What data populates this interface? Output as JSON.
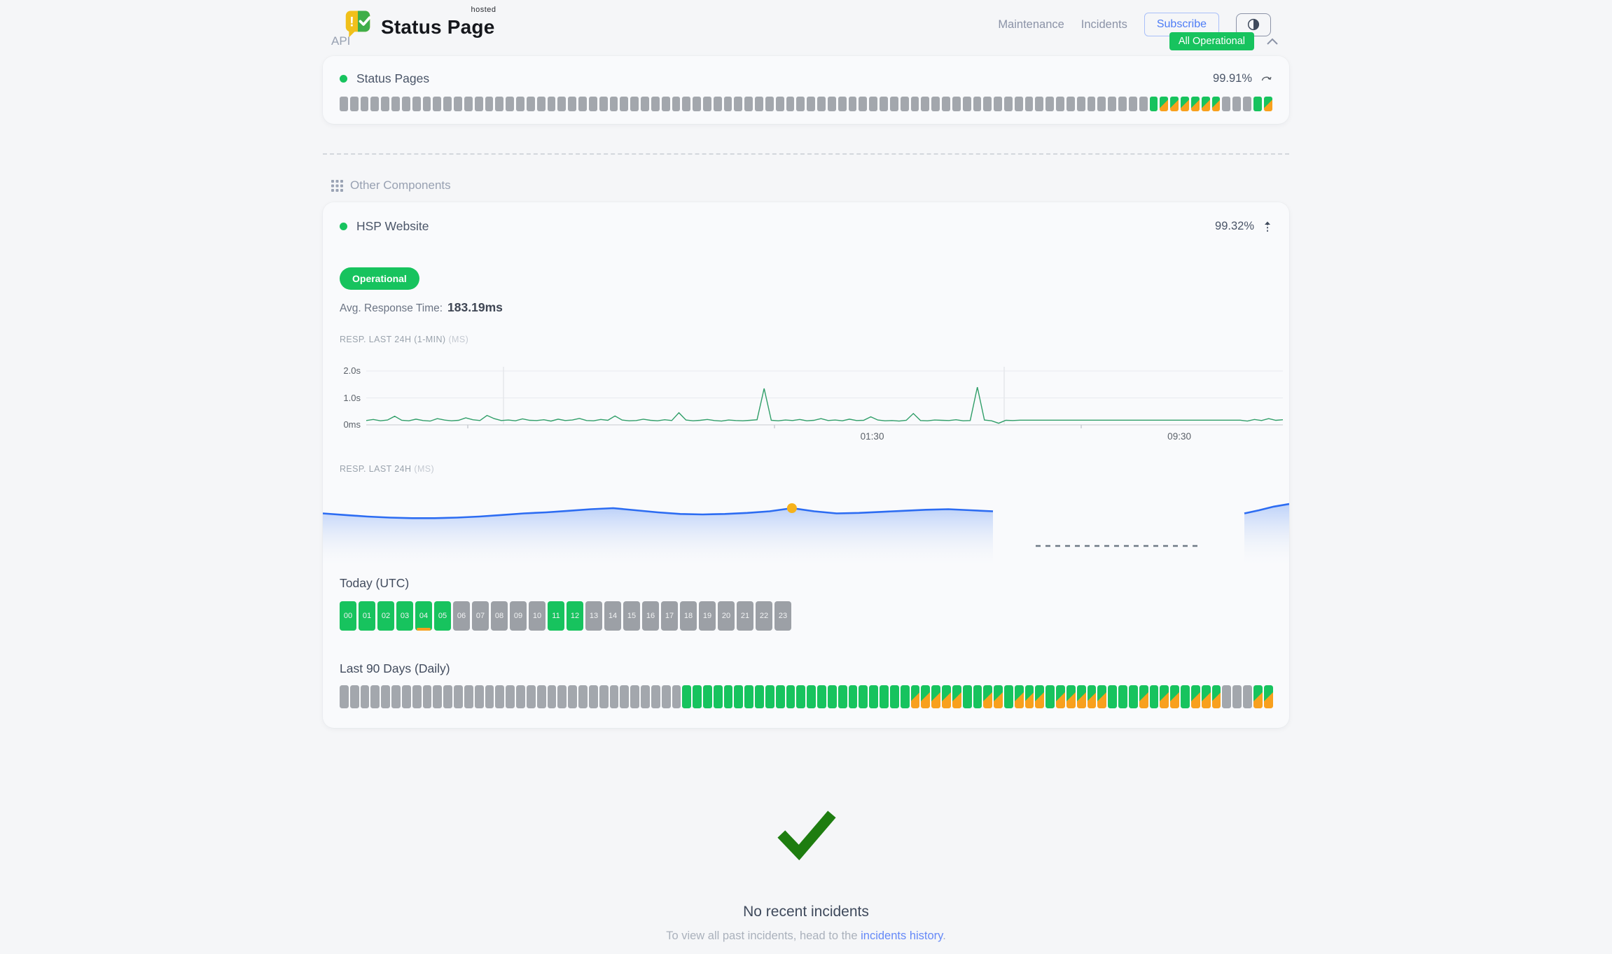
{
  "brand": {
    "name": "Status Page",
    "superscript": "hosted",
    "alert_glyph": "!"
  },
  "nav": {
    "maintenance": "Maintenance",
    "incidents": "Incidents",
    "subscribe": "Subscribe"
  },
  "api_group": {
    "title": "API",
    "status_badge": "All Operational",
    "component": {
      "name": "Status Pages",
      "uptime": "99.91%"
    },
    "bars_runs": "n:78,u:1,d:6,n:3,u:1,d:1"
  },
  "other_group": {
    "title": "Other Components",
    "component": {
      "name": "HSP Website",
      "uptime": "99.32%"
    },
    "status_pill": "Operational",
    "avg_response_label": "Avg. Response Time:",
    "avg_response_value": "183.19ms",
    "chart1": {
      "label": "RESP. LAST 24H (1-MIN)",
      "unit": "(MS)",
      "y_ticks": [
        "2.0s",
        "1.0s",
        "0ms"
      ],
      "x_ticks": [
        {
          "label": "01:30",
          "pos": 0.552
        },
        {
          "label": "09:30",
          "pos": 0.887
        }
      ],
      "y_max_ms": 2000,
      "values": [
        160,
        200,
        150,
        180,
        320,
        170,
        150,
        210,
        160,
        140,
        230,
        180,
        150,
        170,
        260,
        190,
        160,
        350,
        230,
        160,
        180,
        150,
        220,
        170,
        160,
        190,
        140,
        210,
        160,
        180,
        240,
        160,
        150,
        200,
        170,
        330,
        180,
        150,
        160,
        210,
        170,
        150,
        190,
        160,
        450,
        180,
        150,
        170,
        200,
        160,
        140,
        180,
        160,
        150,
        170,
        190,
        1350,
        170,
        150,
        180,
        160,
        200,
        150,
        170,
        230,
        160,
        180,
        150,
        210,
        160,
        170,
        300,
        180,
        150,
        160,
        140,
        170,
        420,
        160,
        150,
        180,
        170,
        160,
        190,
        150,
        160,
        1400,
        180,
        150,
        60,
        170,
        160,
        175,
        175,
        175,
        175,
        175,
        175,
        175,
        175,
        175,
        175,
        175,
        175,
        175,
        175,
        175,
        175,
        175,
        175,
        175,
        175,
        175,
        175,
        175,
        175,
        175,
        175,
        175,
        175,
        175,
        175,
        175,
        175,
        140,
        200,
        160,
        230,
        170,
        190
      ]
    },
    "chart2": {
      "label": "RESP. LAST 24H",
      "unit": "(MS)",
      "values": [
        0.5,
        0.47,
        0.44,
        0.42,
        0.41,
        0.41,
        0.42,
        0.44,
        0.47,
        0.5,
        0.52,
        0.55,
        0.58,
        0.6,
        0.56,
        0.52,
        0.49,
        0.48,
        0.49,
        0.51,
        0.54,
        0.6,
        0.54,
        0.5,
        0.51,
        0.53,
        0.55,
        0.57,
        0.58,
        0.56,
        0.54
      ],
      "marker_index": 21,
      "stub_values": [
        0.5,
        0.56,
        0.63,
        0.68
      ]
    },
    "today": {
      "title": "Today (UTC)",
      "labels": [
        "00",
        "01",
        "02",
        "03",
        "04",
        "05",
        "06",
        "07",
        "08",
        "09",
        "10",
        "11",
        "12",
        "13",
        "14",
        "15",
        "16",
        "17",
        "18",
        "19",
        "20",
        "21",
        "22",
        "23"
      ],
      "states_runs": "u:4,ud:1,u:1,n:5,u:2,n:11"
    },
    "last90": {
      "title": "Last 90 Days (Daily)",
      "days_runs": "n:33,u:22,d:5,u:2,d:2,u:1,d:3,u:1,d:5,u:3,d:1,u:1,d:2,u:1,d:3,n:3,d:2"
    }
  },
  "incidents": {
    "title": "No recent incidents",
    "text_prefix": "To view all past incidents, head to the ",
    "link_text": "incidents history",
    "text_suffix": "."
  },
  "colors": {
    "green": "#17c35e",
    "orange": "#f8a01d",
    "gray-block": "#a3a7ad",
    "hour-gray": "#9ca0a6",
    "chart-green": "#2f9e68",
    "blue": "#2c6cf2",
    "marker": "#f6b21b",
    "check": "#1e7d10",
    "link": "#6589f8",
    "subscribe": "#4d7cf6"
  }
}
